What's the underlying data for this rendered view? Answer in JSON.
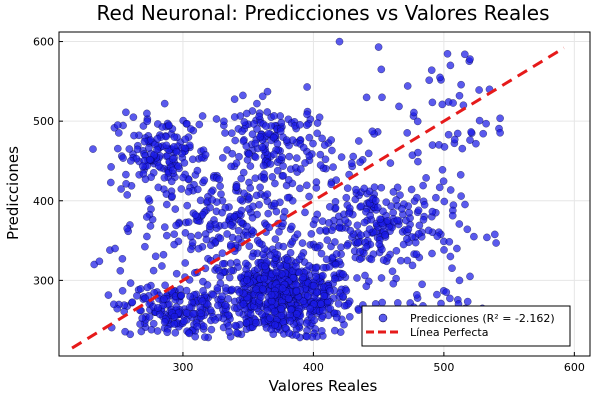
{
  "chart_data": {
    "type": "scatter",
    "title": "Red Neuronal: Predicciones vs Valores Reales",
    "xlabel": "Valores Reales",
    "ylabel": "Predicciones",
    "xlim": [
      205,
      612
    ],
    "ylim": [
      205,
      612
    ],
    "xticks": [
      300,
      400,
      500,
      600
    ],
    "yticks": [
      300,
      400,
      500,
      600
    ],
    "grid": true,
    "legend_position": "bottom-right",
    "colors": {
      "points": "#1a1ae6",
      "point_edge": "#000033",
      "line": "#e61a1a",
      "frame": "#000000",
      "grid": "#e6e6e6"
    },
    "series": [
      {
        "name": "Predicciones (R² = -2.162)",
        "kind": "scatter",
        "clusters": [
          {
            "cx": 375,
            "cy": 280,
            "sx": 28,
            "sy": 28,
            "n": 700
          },
          {
            "cx": 290,
            "cy": 262,
            "sx": 18,
            "sy": 18,
            "n": 170
          },
          {
            "cx": 285,
            "cy": 455,
            "sx": 18,
            "sy": 25,
            "n": 170
          },
          {
            "cx": 370,
            "cy": 465,
            "sx": 22,
            "sy": 30,
            "n": 190
          },
          {
            "cx": 450,
            "cy": 370,
            "sx": 30,
            "sy": 30,
            "n": 240
          },
          {
            "cx": 325,
            "cy": 370,
            "sx": 28,
            "sy": 28,
            "n": 160
          },
          {
            "cx": 490,
            "cy": 500,
            "sx": 30,
            "sy": 40,
            "n": 50
          },
          {
            "cx": 500,
            "cy": 260,
            "sx": 20,
            "sy": 20,
            "n": 40
          }
        ],
        "points": [
          [
            232,
            320
          ],
          [
            236,
            324
          ],
          [
            244,
            338
          ],
          [
            248,
            340
          ],
          [
            252,
            312
          ],
          [
            250,
            495
          ],
          [
            262,
            505
          ],
          [
            420,
            600
          ],
          [
            450,
            593
          ],
          [
            516,
            584
          ],
          [
            520,
            578
          ],
          [
            505,
            570
          ],
          [
            497,
            555
          ],
          [
            535,
            540
          ],
          [
            512,
            532
          ],
          [
            515,
            520
          ],
          [
            540,
            347
          ],
          [
            533,
            354
          ],
          [
            523,
            355
          ],
          [
            510,
            340
          ],
          [
            505,
            330
          ],
          [
            520,
            305
          ],
          [
            512,
            300
          ],
          [
            247,
            270
          ],
          [
            286,
            522
          ],
          [
            330,
            385
          ],
          [
            452,
            565
          ]
        ]
      },
      {
        "name": "Línea Perfecta",
        "kind": "line",
        "style": "dashed",
        "x": [
          215,
          592
        ],
        "y": [
          215,
          592
        ]
      }
    ]
  }
}
